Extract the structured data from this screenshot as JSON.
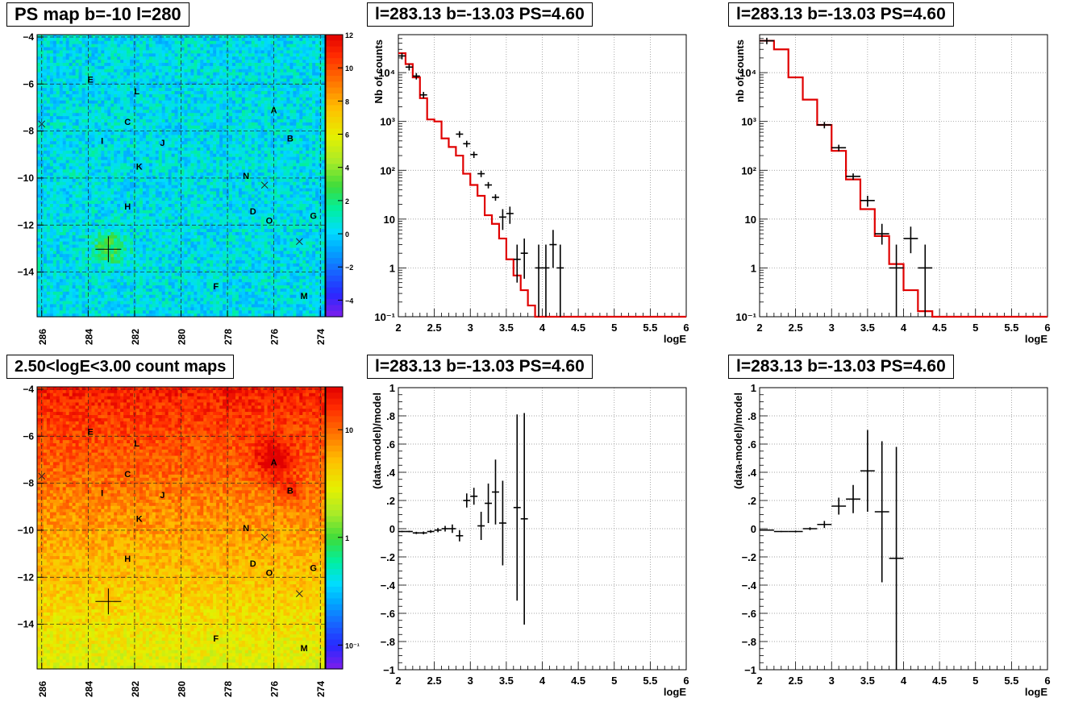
{
  "panels": {
    "tl_title": "PS map b=-10 l=280",
    "tm_title": "l=283.13 b=-13.03 PS=4.60",
    "tr_title": "l=283.13 b=-13.03 PS=4.60",
    "bl_title": "2.50<logE<3.00 count maps",
    "bm_title": "l=283.13 b=-13.03 PS=4.60",
    "br_title": "l=283.13 b=-13.03 PS=4.60"
  },
  "chart_data": [
    {
      "id": "ps_map",
      "type": "heatmap",
      "x_ticks": [
        286,
        284,
        282,
        280,
        278,
        276,
        274
      ],
      "y_ticks": [
        -4,
        -6,
        -8,
        -10,
        -12,
        -14
      ],
      "xlim": [
        286.2,
        273.8
      ],
      "ylim": [
        -15.9,
        -3.9
      ],
      "colorbar_ticks": [
        12,
        10,
        8,
        6,
        4,
        2,
        0,
        -2,
        -4
      ],
      "colorbar_range": [
        -5,
        12
      ],
      "source_labels": [
        {
          "name": "E",
          "l": 283.9,
          "b": -5.8
        },
        {
          "name": "L",
          "l": 281.9,
          "b": -6.3
        },
        {
          "name": "A",
          "l": 276.0,
          "b": -7.1
        },
        {
          "name": "C",
          "l": 282.3,
          "b": -7.6
        },
        {
          "name": "I",
          "l": 283.4,
          "b": -8.4
        },
        {
          "name": "J",
          "l": 280.8,
          "b": -8.5
        },
        {
          "name": "B",
          "l": 275.3,
          "b": -8.3
        },
        {
          "name": "K",
          "l": 281.8,
          "b": -9.5
        },
        {
          "name": "N",
          "l": 277.2,
          "b": -9.9
        },
        {
          "name": "H",
          "l": 282.3,
          "b": -11.2
        },
        {
          "name": "D",
          "l": 276.9,
          "b": -11.4
        },
        {
          "name": "O",
          "l": 276.2,
          "b": -11.8
        },
        {
          "name": "G",
          "l": 274.3,
          "b": -11.6
        },
        {
          "name": "F",
          "l": 278.5,
          "b": -14.6
        },
        {
          "name": "M",
          "l": 274.7,
          "b": -15.0
        }
      ],
      "crosses": [
        {
          "l": 286.0,
          "b": -7.7
        },
        {
          "l": 276.4,
          "b": -10.3
        },
        {
          "l": 274.9,
          "b": -12.7
        }
      ],
      "target": {
        "l": 283.13,
        "b": -13.03
      }
    },
    {
      "id": "spectrum_1",
      "type": "line",
      "xlabel": "logE",
      "ylabel": "Nb of counts",
      "xlim": [
        2,
        6
      ],
      "ylim": [
        0.1,
        60000
      ],
      "y_log": true,
      "x_ticks": [
        2,
        2.5,
        3,
        3.5,
        4,
        4.5,
        5,
        5.5,
        6
      ],
      "y_ticks": [
        {
          "v": 0.1,
          "label": "10⁻¹"
        },
        {
          "v": 1,
          "label": "1"
        },
        {
          "v": 10,
          "label": "10"
        },
        {
          "v": 100,
          "label": "10²"
        },
        {
          "v": 1000,
          "label": "10³"
        },
        {
          "v": 10000,
          "label": "10⁴"
        }
      ],
      "model_step": {
        "edges": [
          2,
          2.1,
          2.2,
          2.3,
          2.4,
          2.5,
          2.6,
          2.7,
          2.8,
          2.9,
          3,
          3.1,
          3.2,
          3.3,
          3.4,
          3.5,
          3.6,
          3.7,
          3.8,
          3.9,
          4,
          4.1,
          4.2,
          4.3,
          6
        ],
        "values": [
          25000,
          15000,
          8000,
          3000,
          1100,
          1000,
          450,
          300,
          200,
          85,
          50,
          30,
          12,
          8,
          4,
          1.5,
          0.7,
          0.35,
          0.17,
          0.1,
          0.1,
          0.1,
          0.1,
          0.1
        ]
      },
      "data_points": [
        {
          "x": 2.05,
          "y": 22000
        },
        {
          "x": 2.15,
          "y": 13000
        },
        {
          "x": 2.25,
          "y": 8500
        },
        {
          "x": 2.35,
          "y": 3500
        },
        {
          "x": 2.85,
          "y": 550
        },
        {
          "x": 2.95,
          "y": 350
        },
        {
          "x": 3.05,
          "y": 210
        },
        {
          "x": 3.15,
          "y": 85
        },
        {
          "x": 3.25,
          "y": 50
        },
        {
          "x": 3.35,
          "y": 28
        },
        {
          "x": 3.45,
          "y": 11,
          "lo": 6,
          "hi": 16
        },
        {
          "x": 3.55,
          "y": 13,
          "lo": 8,
          "hi": 18
        },
        {
          "x": 3.65,
          "y": 1.5,
          "lo": 0.5,
          "hi": 3
        },
        {
          "x": 3.75,
          "y": 2,
          "lo": 0.6,
          "hi": 4
        },
        {
          "x": 3.95,
          "y": 1,
          "lo": 0.1,
          "hi": 3
        },
        {
          "x": 4.05,
          "y": 1,
          "lo": 0.1,
          "hi": 3
        },
        {
          "x": 4.15,
          "y": 3,
          "lo": 1,
          "hi": 6
        },
        {
          "x": 4.25,
          "y": 1,
          "lo": 0.1,
          "hi": 3
        }
      ]
    },
    {
      "id": "spectrum_2",
      "type": "line",
      "xlabel": "logE",
      "ylabel": "nb of counts",
      "xlim": [
        2,
        6
      ],
      "ylim": [
        0.1,
        60000
      ],
      "y_log": true,
      "x_ticks": [
        2,
        2.5,
        3,
        3.5,
        4,
        4.5,
        5,
        5.5,
        6
      ],
      "y_ticks": [
        {
          "v": 0.1,
          "label": "10⁻¹"
        },
        {
          "v": 1,
          "label": "1"
        },
        {
          "v": 10,
          "label": "10"
        },
        {
          "v": 100,
          "label": "10²"
        },
        {
          "v": 1000,
          "label": "10³"
        },
        {
          "v": 10000,
          "label": "10⁴"
        }
      ],
      "model_step": {
        "edges": [
          2,
          2.2,
          2.4,
          2.6,
          2.8,
          3,
          3.2,
          3.4,
          3.6,
          3.8,
          4,
          4.2,
          4.4,
          6
        ],
        "values": [
          45000,
          30000,
          8000,
          2800,
          850,
          250,
          65,
          16,
          4.5,
          1.2,
          0.35,
          0.13,
          0.1
        ]
      },
      "data_points": [
        {
          "x": 2.1,
          "y": 45000
        },
        {
          "x": 2.9,
          "y": 850
        },
        {
          "x": 3.1,
          "y": 290
        },
        {
          "x": 3.3,
          "y": 75
        },
        {
          "x": 3.5,
          "y": 24,
          "lo": 18,
          "hi": 30
        },
        {
          "x": 3.7,
          "y": 5,
          "lo": 3,
          "hi": 8
        },
        {
          "x": 3.9,
          "y": 1,
          "lo": 0.1,
          "hi": 3
        },
        {
          "x": 4.1,
          "y": 4,
          "lo": 2,
          "hi": 7
        },
        {
          "x": 4.3,
          "y": 1,
          "lo": 0.1,
          "hi": 3
        }
      ]
    },
    {
      "id": "count_map",
      "type": "heatmap",
      "x_ticks": [
        286,
        284,
        282,
        280,
        278,
        276,
        274
      ],
      "y_ticks": [
        -4,
        -6,
        -8,
        -10,
        -12,
        -14
      ],
      "xlim": [
        286.2,
        273.8
      ],
      "ylim": [
        -15.9,
        -3.9
      ],
      "colorbar_ticks": [
        {
          "v": 10,
          "label": "10"
        },
        {
          "v": 1,
          "label": "1"
        },
        {
          "v": 0.1,
          "label": "10⁻¹"
        }
      ],
      "colorbar_range": [
        0.06,
        25
      ],
      "source_labels": [
        {
          "name": "E",
          "l": 283.9,
          "b": -5.8
        },
        {
          "name": "L",
          "l": 281.9,
          "b": -6.3
        },
        {
          "name": "A",
          "l": 276.0,
          "b": -7.1
        },
        {
          "name": "C",
          "l": 282.3,
          "b": -7.6
        },
        {
          "name": "I",
          "l": 283.4,
          "b": -8.4
        },
        {
          "name": "J",
          "l": 280.8,
          "b": -8.5
        },
        {
          "name": "B",
          "l": 275.3,
          "b": -8.3
        },
        {
          "name": "K",
          "l": 281.8,
          "b": -9.5
        },
        {
          "name": "N",
          "l": 277.2,
          "b": -9.9
        },
        {
          "name": "H",
          "l": 282.3,
          "b": -11.2
        },
        {
          "name": "D",
          "l": 276.9,
          "b": -11.4
        },
        {
          "name": "O",
          "l": 276.2,
          "b": -11.8
        },
        {
          "name": "G",
          "l": 274.3,
          "b": -11.6
        },
        {
          "name": "F",
          "l": 278.5,
          "b": -14.6
        },
        {
          "name": "M",
          "l": 274.7,
          "b": -15.0
        }
      ],
      "crosses": [
        {
          "l": 286.0,
          "b": -7.7
        },
        {
          "l": 276.4,
          "b": -10.3
        },
        {
          "l": 274.9,
          "b": -12.7
        }
      ],
      "target": {
        "l": 283.13,
        "b": -13.03
      }
    },
    {
      "id": "residual_1",
      "type": "scatter",
      "xlabel": "logE",
      "ylabel": "(data-model)/model",
      "xlim": [
        2,
        6
      ],
      "ylim": [
        -1,
        1
      ],
      "x_ticks": [
        2,
        2.5,
        3,
        3.5,
        4,
        4.5,
        5,
        5.5,
        6
      ],
      "y_ticks": [
        -1,
        -0.8,
        -0.6,
        -0.4,
        -0.2,
        0,
        0.2,
        0.4,
        0.6,
        0.8,
        1
      ],
      "data_points": [
        {
          "x": 2.05,
          "y": -0.02,
          "e": 0.005
        },
        {
          "x": 2.15,
          "y": -0.02,
          "e": 0.005
        },
        {
          "x": 2.25,
          "y": -0.03,
          "e": 0.008
        },
        {
          "x": 2.35,
          "y": -0.03,
          "e": 0.01
        },
        {
          "x": 2.45,
          "y": -0.02,
          "e": 0.01
        },
        {
          "x": 2.55,
          "y": -0.01,
          "e": 0.015
        },
        {
          "x": 2.65,
          "y": 0.0,
          "e": 0.02
        },
        {
          "x": 2.75,
          "y": 0.0,
          "e": 0.03
        },
        {
          "x": 2.85,
          "y": -0.05,
          "e": 0.04
        },
        {
          "x": 2.95,
          "y": 0.2,
          "e": 0.05
        },
        {
          "x": 3.05,
          "y": 0.23,
          "e": 0.06
        },
        {
          "x": 3.15,
          "y": 0.02,
          "e": 0.1
        },
        {
          "x": 3.25,
          "y": 0.18,
          "e": 0.14
        },
        {
          "x": 3.35,
          "y": 0.26,
          "e": 0.23
        },
        {
          "x": 3.45,
          "y": 0.04,
          "e": 0.3
        },
        {
          "x": 3.65,
          "y": 0.15,
          "e": 0.66
        },
        {
          "x": 3.75,
          "y": 0.07,
          "e": 0.75
        }
      ]
    },
    {
      "id": "residual_2",
      "type": "scatter",
      "xlabel": "logE",
      "ylabel": "(data-model)/model",
      "xlim": [
        2,
        6
      ],
      "ylim": [
        -1,
        1
      ],
      "x_ticks": [
        2,
        2.5,
        3,
        3.5,
        4,
        4.5,
        5,
        5.5,
        6
      ],
      "y_ticks": [
        -1,
        -0.8,
        -0.6,
        -0.4,
        -0.2,
        0,
        0.2,
        0.4,
        0.6,
        0.8,
        1
      ],
      "data_points": [
        {
          "x": 2.1,
          "y": -0.01,
          "e": 0.003
        },
        {
          "x": 2.3,
          "y": -0.02,
          "e": 0.004
        },
        {
          "x": 2.5,
          "y": -0.02,
          "e": 0.006
        },
        {
          "x": 2.7,
          "y": 0.0,
          "e": 0.01
        },
        {
          "x": 2.9,
          "y": 0.03,
          "e": 0.025
        },
        {
          "x": 3.1,
          "y": 0.16,
          "e": 0.06
        },
        {
          "x": 3.3,
          "y": 0.21,
          "e": 0.1
        },
        {
          "x": 3.5,
          "y": 0.41,
          "e": 0.29
        },
        {
          "x": 3.7,
          "y": 0.12,
          "e": 0.5
        },
        {
          "x": 3.9,
          "y": -0.21,
          "e": 0.79
        }
      ]
    }
  ]
}
